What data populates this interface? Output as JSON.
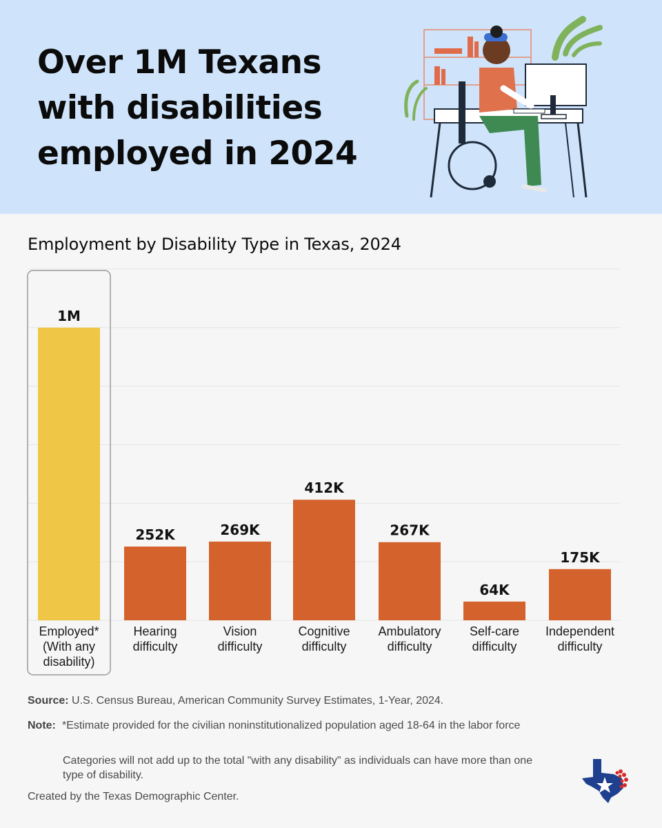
{
  "headline": "Over 1M Texans with disabilities employed in 2024",
  "chart_title": "Employment by Disability Type in Texas, 2024",
  "chart_data": {
    "type": "bar",
    "title": "Employment by Disability Type in Texas, 2024",
    "categories": [
      [
        "Employed*",
        "(With any",
        "disability)"
      ],
      [
        "Hearing",
        "difficulty"
      ],
      [
        "Vision",
        "difficulty"
      ],
      [
        "Cognitive",
        "difficulty"
      ],
      [
        "Ambulatory",
        "difficulty"
      ],
      [
        "Self-care",
        "difficulty"
      ],
      [
        "Independent",
        "difficulty"
      ]
    ],
    "values": [
      1000000,
      252000,
      269000,
      412000,
      267000,
      64000,
      175000
    ],
    "labels": [
      "1M",
      "252K",
      "269K",
      "412K",
      "267K",
      "64K",
      "175K"
    ],
    "ylim": [
      0,
      1200000
    ],
    "grid": true,
    "highlight_index": 0,
    "colors": {
      "highlight": "#f0c646",
      "default": "#d4622c",
      "grid": "#e4e4e4",
      "highlight_border": "#999999"
    }
  },
  "footer": {
    "source_label": "Source:",
    "source_text": "U.S. Census Bureau, American Community Survey Estimates, 1-Year, 2024.",
    "note_label": "Note:",
    "note_text_1": "*Estimate provided for the civilian noninstitutionalized population aged 18-64 in the labor force",
    "note_text_2": "Categories will not add up to the total \"with any disability\" as individuals can have more than one type of disability.",
    "created_by": "Created by the Texas Demographic Center."
  },
  "icons": {
    "illustration": "person-in-wheelchair-at-computer-illustration",
    "logo": "texas-map-star-logo"
  },
  "colors": {
    "header_bg": "#cfe4fb",
    "page_bg": "#f6f6f6",
    "bar_orange": "#d4622c",
    "bar_yellow": "#f0c646"
  }
}
